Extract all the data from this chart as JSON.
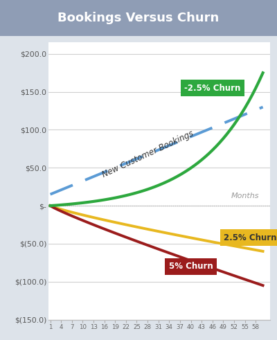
{
  "title": "Bookings Versus Churn",
  "title_bg": "#8f9db5",
  "title_color": "white",
  "xlabel": "Months",
  "ylabel_ticks": [
    "$200.0",
    "$150.0",
    "$100.0",
    "$50.0",
    "$-",
    "$(50.0)",
    "$(100.0)",
    "$(150.0)"
  ],
  "ytick_vals": [
    200,
    150,
    100,
    50,
    0,
    -50,
    -100,
    -150
  ],
  "ylim": [
    -150,
    215
  ],
  "xlim": [
    0.5,
    62
  ],
  "xticks": [
    1,
    4,
    7,
    10,
    13,
    16,
    19,
    22,
    25,
    28,
    31,
    34,
    37,
    40,
    43,
    46,
    49,
    52,
    55,
    58
  ],
  "months": 60,
  "label_neg25": "-2.5% Churn",
  "label_25": "2.5% Churn",
  "label_5": "5% Churn",
  "new_cust_bookings_label": "New Customer Bookings",
  "color_neg25": "#2da83e",
  "color_bookings": "#5b9bd5",
  "color_25": "#e8b820",
  "color_5": "#9b1c1c",
  "plot_bg": "#ffffff",
  "grid_color": "#d0d0d0",
  "fig_bg": "#dde3ea"
}
